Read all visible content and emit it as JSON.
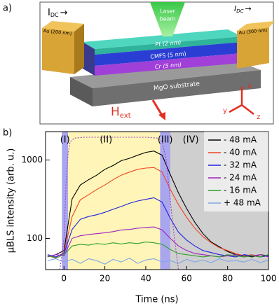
{
  "panel_a": {
    "label": "a)",
    "idc_left": {
      "main": "I",
      "sub": "DC",
      "arrow": "→"
    },
    "idc_right": {
      "main": "I",
      "sub": "DC",
      "arrow": "→"
    },
    "laser_beam": [
      "Laser",
      "beam"
    ],
    "au_left": "Au (200 nm)",
    "au_right": "Au (300 nm)",
    "pt": "Pt (2 nm)",
    "cmfs": "CMFS (5 nm)",
    "cr": "Cr (5 nm)",
    "substrate": "MgO substrate",
    "hext": {
      "main": "H",
      "sub": "ext"
    },
    "axes": {
      "x": "x",
      "y": "y",
      "z": "z"
    }
  },
  "chart_data": {
    "type": "line",
    "panel_label": "b)",
    "x_label": "Time (ns)",
    "y_label": "μBLS intensity (arb. u.)",
    "log_scale": true,
    "xlim": [
      -9,
      100
    ],
    "ylim": [
      40,
      2300
    ],
    "xticks": [
      0,
      20,
      40,
      60,
      80,
      100
    ],
    "yticks": [
      100,
      1000
    ],
    "legend": "top-right",
    "regions": [
      {
        "label": "(I)",
        "x": [
          -1,
          2
        ],
        "color": "#a9a6ee"
      },
      {
        "label": "(II)",
        "x": [
          2,
          47
        ],
        "color": "#fff5b8"
      },
      {
        "label": "(III)",
        "x": [
          47,
          52
        ],
        "color": "#a9a6ee"
      },
      {
        "label": "(IV)",
        "x": [
          52,
          100
        ],
        "color": "#cfcfcf"
      }
    ],
    "pulse_profile": {
      "color": "#a040c0",
      "x": [
        -2,
        0,
        1,
        2,
        3,
        5,
        10,
        20,
        30,
        40,
        46,
        48,
        50,
        52,
        54,
        56
      ],
      "values": [
        40,
        100,
        500,
        1200,
        1700,
        1900,
        1950,
        1950,
        1950,
        1950,
        1900,
        1700,
        1000,
        300,
        100,
        40
      ]
    },
    "x": [
      -8,
      -4,
      0,
      4,
      8,
      12,
      16,
      20,
      24,
      28,
      32,
      36,
      40,
      44,
      48,
      52,
      56,
      60,
      64,
      68,
      72,
      76,
      80,
      84,
      88,
      92,
      96,
      100
    ],
    "series": [
      {
        "name": "- 48 mA",
        "color": "#000000",
        "values": [
          58,
          62,
          70,
          320,
          480,
          560,
          640,
          760,
          850,
          980,
          1050,
          1150,
          1250,
          1300,
          1150,
          650,
          380,
          240,
          160,
          115,
          90,
          78,
          68,
          62,
          60,
          58,
          62,
          60
        ]
      },
      {
        "name": "- 40 mA",
        "color": "#ee4422",
        "values": [
          60,
          57,
          66,
          190,
          310,
          360,
          420,
          480,
          560,
          640,
          700,
          760,
          790,
          800,
          700,
          420,
          270,
          185,
          135,
          105,
          88,
          76,
          70,
          64,
          60,
          62,
          58,
          60
        ]
      },
      {
        "name": "- 32 mA",
        "color": "#2020dd",
        "values": [
          62,
          58,
          64,
          130,
          175,
          190,
          200,
          215,
          235,
          255,
          280,
          300,
          315,
          330,
          290,
          180,
          120,
          95,
          80,
          70,
          66,
          62,
          60,
          58,
          62,
          60,
          58,
          60
        ]
      },
      {
        "name": "- 24 mA",
        "color": "#a020c0",
        "values": [
          58,
          62,
          60,
          100,
          108,
          112,
          115,
          118,
          122,
          128,
          130,
          135,
          138,
          140,
          128,
          100,
          80,
          70,
          64,
          62,
          60,
          58,
          60,
          62,
          58,
          60,
          62,
          58
        ]
      },
      {
        "name": "- 16 mA",
        "color": "#33a02c",
        "values": [
          60,
          56,
          62,
          80,
          84,
          82,
          86,
          84,
          88,
          85,
          88,
          86,
          90,
          88,
          84,
          72,
          64,
          62,
          60,
          58,
          60,
          58,
          62,
          60,
          58,
          60,
          58,
          62
        ]
      },
      {
        "name": "+ 48 mA",
        "color": "#7fa6e6",
        "values": [
          52,
          55,
          50,
          54,
          48,
          55,
          52,
          47,
          54,
          50,
          56,
          48,
          53,
          55,
          50,
          52,
          48,
          54,
          50,
          53,
          49,
          55,
          51,
          52,
          50,
          54,
          49,
          53
        ]
      }
    ]
  }
}
